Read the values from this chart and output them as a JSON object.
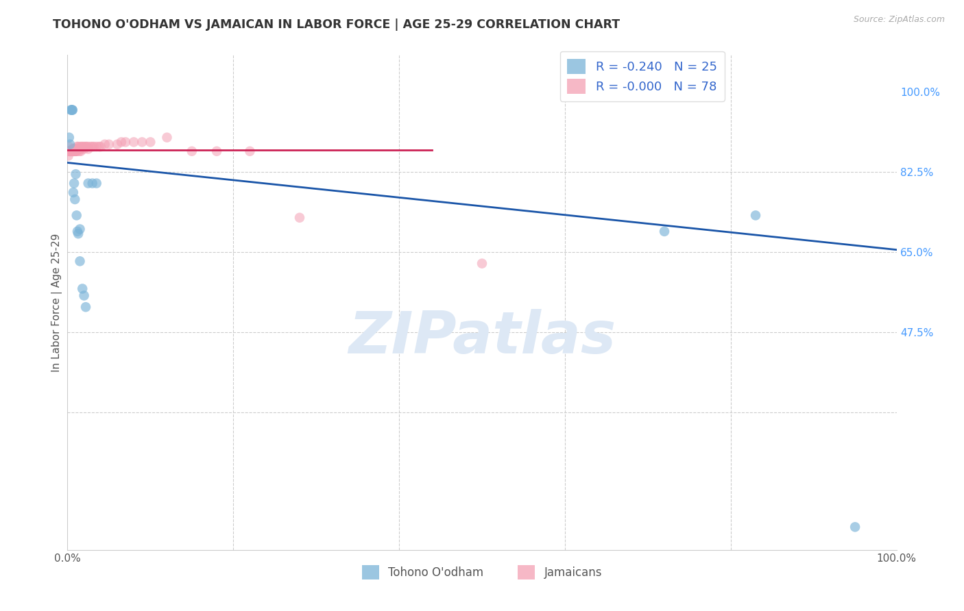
{
  "title": "TOHONO O'ODHAM VS JAMAICAN IN LABOR FORCE | AGE 25-29 CORRELATION CHART",
  "source": "Source: ZipAtlas.com",
  "ylabel": "In Labor Force | Age 25-29",
  "xlim": [
    0.0,
    1.0
  ],
  "ylim": [
    0.0,
    1.08
  ],
  "grid_color": "#cccccc",
  "background_color": "#ffffff",
  "watermark_text": "ZIPatlas",
  "blue_color": "#7ab3d8",
  "pink_color": "#f4a0b4",
  "blue_line_color": "#1a55a8",
  "pink_line_color": "#cc2255",
  "legend_r_blue": "-0.240",
  "legend_n_blue": "25",
  "legend_r_pink": "-0.000",
  "legend_n_pink": "78",
  "legend_label_blue": "Tohono O'odham",
  "legend_label_pink": "Jamaicans",
  "blue_x": [
    0.002,
    0.003,
    0.004,
    0.005,
    0.005,
    0.006,
    0.006,
    0.007,
    0.008,
    0.009,
    0.01,
    0.011,
    0.012,
    0.013,
    0.015,
    0.015,
    0.018,
    0.02,
    0.022,
    0.025,
    0.03,
    0.035,
    0.72,
    0.83,
    0.95
  ],
  "blue_y": [
    0.9,
    0.885,
    0.96,
    0.96,
    0.96,
    0.96,
    0.96,
    0.78,
    0.8,
    0.765,
    0.82,
    0.73,
    0.695,
    0.69,
    0.7,
    0.63,
    0.57,
    0.555,
    0.53,
    0.8,
    0.8,
    0.8,
    0.695,
    0.73,
    0.05
  ],
  "pink_x": [
    0.001,
    0.001,
    0.002,
    0.002,
    0.002,
    0.003,
    0.003,
    0.003,
    0.003,
    0.004,
    0.004,
    0.004,
    0.004,
    0.004,
    0.005,
    0.005,
    0.005,
    0.005,
    0.005,
    0.005,
    0.006,
    0.006,
    0.006,
    0.006,
    0.006,
    0.007,
    0.007,
    0.007,
    0.007,
    0.008,
    0.008,
    0.008,
    0.008,
    0.009,
    0.009,
    0.009,
    0.01,
    0.01,
    0.01,
    0.01,
    0.011,
    0.011,
    0.012,
    0.012,
    0.013,
    0.014,
    0.015,
    0.015,
    0.016,
    0.016,
    0.017,
    0.018,
    0.02,
    0.02,
    0.022,
    0.023,
    0.025,
    0.025,
    0.028,
    0.03,
    0.032,
    0.035,
    0.038,
    0.04,
    0.045,
    0.05,
    0.06,
    0.065,
    0.07,
    0.08,
    0.09,
    0.1,
    0.12,
    0.15,
    0.18,
    0.22,
    0.28,
    0.5
  ],
  "pink_y": [
    0.87,
    0.86,
    0.87,
    0.87,
    0.88,
    0.87,
    0.87,
    0.87,
    0.87,
    0.87,
    0.87,
    0.87,
    0.87,
    0.87,
    0.87,
    0.87,
    0.87,
    0.87,
    0.87,
    0.87,
    0.875,
    0.87,
    0.87,
    0.87,
    0.87,
    0.875,
    0.87,
    0.87,
    0.87,
    0.875,
    0.87,
    0.87,
    0.87,
    0.875,
    0.87,
    0.87,
    0.875,
    0.87,
    0.87,
    0.87,
    0.875,
    0.87,
    0.88,
    0.88,
    0.875,
    0.87,
    0.875,
    0.88,
    0.875,
    0.87,
    0.88,
    0.88,
    0.88,
    0.875,
    0.88,
    0.88,
    0.88,
    0.875,
    0.88,
    0.88,
    0.88,
    0.88,
    0.88,
    0.88,
    0.885,
    0.885,
    0.885,
    0.89,
    0.89,
    0.89,
    0.89,
    0.89,
    0.9,
    0.87,
    0.87,
    0.87,
    0.725,
    0.625
  ],
  "blue_trend_x": [
    0.0,
    1.0
  ],
  "blue_trend_y_start": 0.845,
  "blue_trend_y_end": 0.655,
  "pink_trend_x": [
    0.0,
    0.44
  ],
  "pink_trend_y_start": 0.872,
  "pink_trend_y_end": 0.872,
  "ytick_vals": [
    1.0,
    0.825,
    0.65,
    0.475
  ],
  "ytick_labels": [
    "100.0%",
    "82.5%",
    "65.0%",
    "47.5%"
  ]
}
